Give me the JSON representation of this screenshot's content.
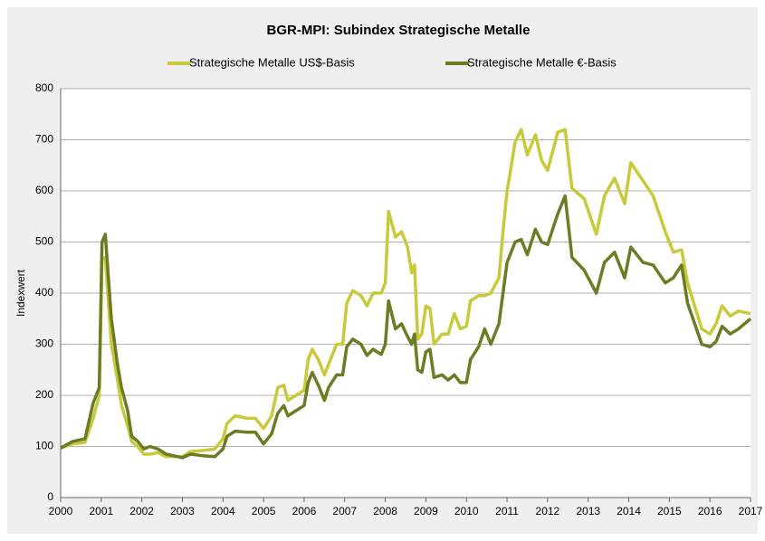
{
  "chart_data": {
    "type": "line",
    "title": "BGR-MPI:  Subindex Strategische Metalle",
    "ylabel": "Indexwert",
    "x": [
      2000,
      2000.3,
      2000.6,
      2000.8,
      2000.95,
      2001.02,
      2001.1,
      2001.25,
      2001.4,
      2001.5,
      2001.65,
      2001.75,
      2001.9,
      2002.05,
      2002.2,
      2002.4,
      2002.6,
      2003,
      2003.2,
      2003.5,
      2003.8,
      2004,
      2004.1,
      2004.3,
      2004.6,
      2004.8,
      2005,
      2005.2,
      2005.35,
      2005.5,
      2005.6,
      2005.8,
      2006,
      2006.1,
      2006.2,
      2006.35,
      2006.5,
      2006.6,
      2006.8,
      2006.95,
      2007.05,
      2007.2,
      2007.4,
      2007.55,
      2007.7,
      2007.9,
      2008,
      2008.08,
      2008.25,
      2008.4,
      2008.55,
      2008.65,
      2008.72,
      2008.8,
      2008.9,
      2009,
      2009.1,
      2009.2,
      2009.4,
      2009.55,
      2009.7,
      2009.85,
      2010,
      2010.1,
      2010.3,
      2010.45,
      2010.6,
      2010.8,
      2010.9,
      2011,
      2011.2,
      2011.35,
      2011.5,
      2011.7,
      2011.85,
      2012,
      2012.25,
      2012.43,
      2012.6,
      2012.9,
      2013.2,
      2013.4,
      2013.65,
      2013.9,
      2014.05,
      2014.35,
      2014.6,
      2014.9,
      2015.1,
      2015.3,
      2015.45,
      2015.8,
      2016,
      2016.15,
      2016.3,
      2016.5,
      2016.7,
      2017
    ],
    "series": [
      {
        "name": "Strategische Metalle US$-Basis",
        "color": "#c9c93c",
        "values": [
          97,
          105,
          108,
          155,
          200,
          465,
          470,
          300,
          230,
          180,
          140,
          110,
          100,
          85,
          85,
          88,
          80,
          80,
          90,
          92,
          95,
          115,
          145,
          160,
          155,
          155,
          135,
          160,
          215,
          220,
          190,
          200,
          210,
          270,
          290,
          270,
          240,
          260,
          300,
          300,
          380,
          405,
          395,
          375,
          400,
          400,
          420,
          560,
          510,
          520,
          490,
          440,
          455,
          310,
          320,
          375,
          370,
          300,
          320,
          320,
          360,
          330,
          335,
          385,
          395,
          395,
          400,
          430,
          520,
          600,
          695,
          720,
          670,
          710,
          660,
          640,
          715,
          720,
          605,
          585,
          515,
          590,
          625,
          575,
          655,
          620,
          590,
          520,
          480,
          485,
          420,
          330,
          320,
          340,
          375,
          355,
          365,
          360
        ]
      },
      {
        "name": "Strategische Metalle €-Basis",
        "color": "#6b7d24",
        "values": [
          97,
          110,
          115,
          185,
          215,
          500,
          515,
          350,
          260,
          215,
          170,
          120,
          110,
          95,
          100,
          95,
          85,
          78,
          85,
          82,
          80,
          95,
          120,
          130,
          128,
          128,
          105,
          125,
          165,
          180,
          160,
          170,
          180,
          225,
          245,
          220,
          190,
          215,
          240,
          240,
          295,
          310,
          300,
          278,
          290,
          280,
          300,
          385,
          330,
          340,
          315,
          300,
          320,
          250,
          245,
          285,
          290,
          235,
          240,
          230,
          240,
          225,
          225,
          270,
          295,
          330,
          300,
          340,
          400,
          460,
          500,
          505,
          475,
          525,
          500,
          495,
          555,
          590,
          470,
          445,
          400,
          460,
          480,
          430,
          490,
          460,
          455,
          420,
          430,
          455,
          380,
          300,
          295,
          305,
          335,
          320,
          330,
          350
        ]
      }
    ],
    "xlim": [
      2000,
      2017
    ],
    "xticks": [
      2000,
      2001,
      2002,
      2003,
      2004,
      2005,
      2006,
      2007,
      2008,
      2009,
      2010,
      2011,
      2012,
      2013,
      2014,
      2015,
      2016,
      2017
    ],
    "ylim": [
      0,
      800
    ],
    "yticks": [
      0,
      100,
      200,
      300,
      400,
      500,
      600,
      700,
      800
    ],
    "grid": true
  }
}
